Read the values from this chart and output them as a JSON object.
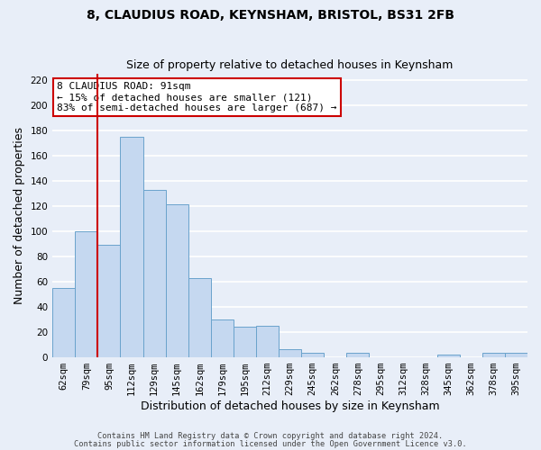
{
  "title": "8, CLAUDIUS ROAD, KEYNSHAM, BRISTOL, BS31 2FB",
  "subtitle": "Size of property relative to detached houses in Keynsham",
  "xlabel": "Distribution of detached houses by size in Keynsham",
  "ylabel": "Number of detached properties",
  "bar_labels": [
    "62sqm",
    "79sqm",
    "95sqm",
    "112sqm",
    "129sqm",
    "145sqm",
    "162sqm",
    "179sqm",
    "195sqm",
    "212sqm",
    "229sqm",
    "245sqm",
    "262sqm",
    "278sqm",
    "295sqm",
    "312sqm",
    "328sqm",
    "345sqm",
    "362sqm",
    "378sqm",
    "395sqm"
  ],
  "bar_values": [
    55,
    100,
    89,
    175,
    133,
    121,
    63,
    30,
    24,
    25,
    6,
    3,
    0,
    3,
    0,
    0,
    0,
    2,
    0,
    3,
    3
  ],
  "bar_color": "#c5d8f0",
  "bar_edge_color": "#6aa3cc",
  "bg_color": "#e8eef8",
  "grid_color": "#ffffff",
  "vline_color": "#cc0000",
  "annotation_title": "8 CLAUDIUS ROAD: 91sqm",
  "annotation_line1": "← 15% of detached houses are smaller (121)",
  "annotation_line2": "83% of semi-detached houses are larger (687) →",
  "annotation_box_color": "#cc0000",
  "ylim": [
    0,
    225
  ],
  "yticks": [
    0,
    20,
    40,
    60,
    80,
    100,
    120,
    140,
    160,
    180,
    200,
    220
  ],
  "footer1": "Contains HM Land Registry data © Crown copyright and database right 2024.",
  "footer2": "Contains public sector information licensed under the Open Government Licence v3.0.",
  "title_fontsize": 10,
  "subtitle_fontsize": 9,
  "tick_fontsize": 7.5,
  "label_fontsize": 9
}
